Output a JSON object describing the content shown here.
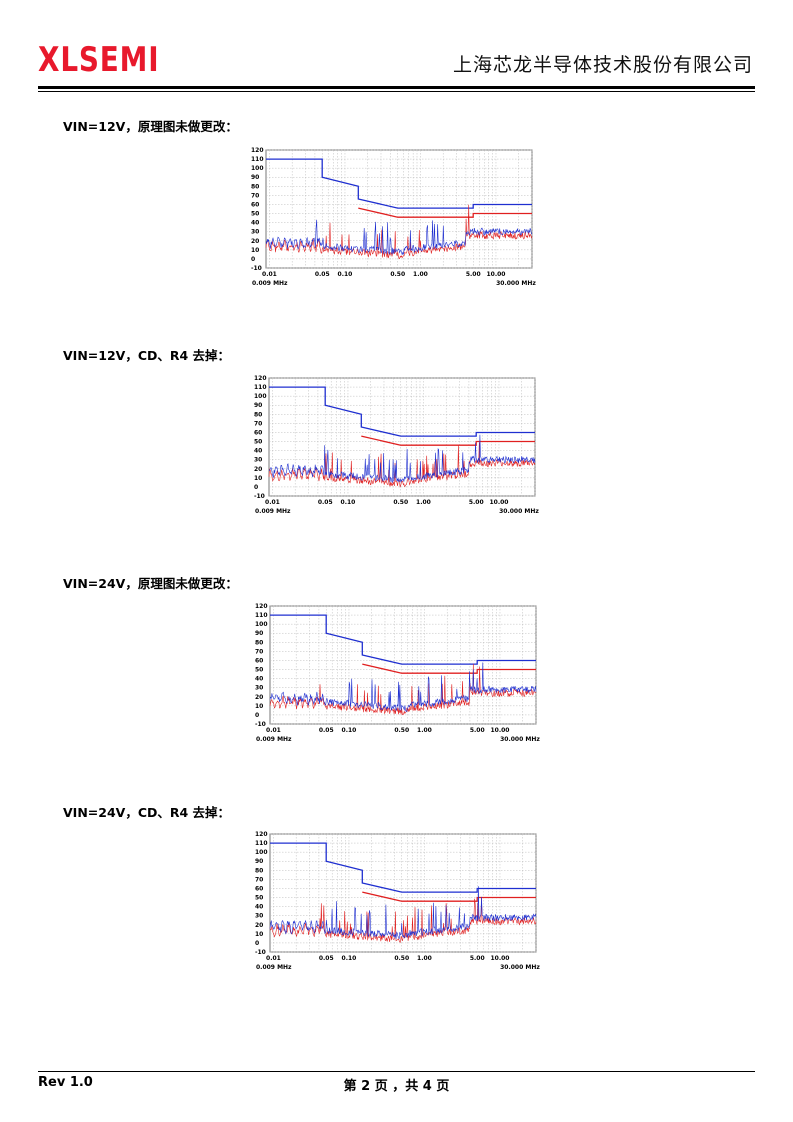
{
  "header": {
    "logo_text": "XLSEMI",
    "company": "上海芯龙半导体技术股份有限公司",
    "logo_color": "#e8192c"
  },
  "sections": [
    {
      "caption": "VIN=12V，原理图未做更改："
    },
    {
      "caption": "VIN=12V，CD、R4 去掉："
    },
    {
      "caption": "VIN=24V，原理图未做更改："
    },
    {
      "caption": "VIN=24V，CD、R4 去掉："
    }
  ],
  "footer": {
    "rev": "Rev 1.0",
    "page": "第 2 页 ，共 4 页"
  },
  "chart_data": [
    {
      "type": "line",
      "x_scale": "log",
      "xlim": [
        0.009,
        30.0
      ],
      "ylim": [
        -10,
        120
      ],
      "y_ticks": [
        120,
        110,
        100,
        90,
        80,
        70,
        60,
        50,
        40,
        30,
        20,
        10,
        0,
        -10
      ],
      "x_tick_labels": [
        "0.01",
        "0.05",
        "0.10",
        "0.50",
        "1.00",
        "5.00",
        "10.00"
      ],
      "x_start_label": "0.009 MHz",
      "x_end_label": "30.000 MHz",
      "grid": true,
      "colors": {
        "quasi_peak": "#1f2fd0",
        "average": "#e02020"
      },
      "limit_upper": {
        "x": [
          0.009,
          0.05,
          0.05,
          0.15,
          0.15,
          0.5,
          5.0,
          5.0,
          30.0
        ],
        "y": [
          110,
          110,
          90,
          80,
          66,
          56,
          56,
          60,
          60
        ]
      },
      "limit_lower": {
        "x": [
          0.15,
          0.5,
          5.0,
          5.0,
          30.0
        ],
        "y": [
          56,
          46,
          46,
          50,
          50
        ]
      },
      "variant": "12V-original"
    },
    {
      "type": "line",
      "x_scale": "log",
      "xlim": [
        0.009,
        30.0
      ],
      "ylim": [
        -10,
        120
      ],
      "y_ticks": [
        120,
        110,
        100,
        90,
        80,
        70,
        60,
        50,
        40,
        30,
        20,
        10,
        0,
        -10
      ],
      "x_tick_labels": [
        "0.01",
        "0.05",
        "0.10",
        "0.50",
        "1.00",
        "5.00",
        "10.00"
      ],
      "x_start_label": "0.009 MHz",
      "x_end_label": "30.000 MHz",
      "grid": true,
      "colors": {
        "quasi_peak": "#1f2fd0",
        "average": "#e02020"
      },
      "limit_upper": {
        "x": [
          0.009,
          0.05,
          0.05,
          0.15,
          0.15,
          0.5,
          5.0,
          5.0,
          30.0
        ],
        "y": [
          110,
          110,
          90,
          80,
          66,
          56,
          56,
          60,
          60
        ]
      },
      "limit_lower": {
        "x": [
          0.15,
          0.5,
          5.0,
          5.0,
          30.0
        ],
        "y": [
          56,
          46,
          46,
          50,
          50
        ]
      },
      "variant": "12V-removed"
    },
    {
      "type": "line",
      "x_scale": "log",
      "xlim": [
        0.009,
        30.0
      ],
      "ylim": [
        -10,
        120
      ],
      "y_ticks": [
        120,
        110,
        100,
        90,
        80,
        70,
        60,
        50,
        40,
        30,
        20,
        10,
        0,
        -10
      ],
      "x_tick_labels": [
        "0.01",
        "0.05",
        "0.10",
        "0.50",
        "1.00",
        "5.00",
        "10.00"
      ],
      "x_start_label": "0.009 MHz",
      "x_end_label": "30.000 MHz",
      "grid": true,
      "colors": {
        "quasi_peak": "#1f2fd0",
        "average": "#e02020"
      },
      "limit_upper": {
        "x": [
          0.009,
          0.05,
          0.05,
          0.15,
          0.15,
          0.5,
          5.0,
          5.0,
          30.0
        ],
        "y": [
          110,
          110,
          90,
          80,
          66,
          56,
          56,
          60,
          60
        ]
      },
      "limit_lower": {
        "x": [
          0.15,
          0.5,
          5.0,
          5.0,
          30.0
        ],
        "y": [
          56,
          46,
          46,
          50,
          50
        ]
      },
      "variant": "24V-original"
    },
    {
      "type": "line",
      "x_scale": "log",
      "xlim": [
        0.009,
        30.0
      ],
      "ylim": [
        -10,
        120
      ],
      "y_ticks": [
        120,
        110,
        100,
        90,
        80,
        70,
        60,
        50,
        40,
        30,
        20,
        10,
        0,
        -10
      ],
      "x_tick_labels": [
        "0.01",
        "0.05",
        "0.10",
        "0.50",
        "1.00",
        "5.00",
        "10.00"
      ],
      "x_start_label": "0.009 MHz",
      "x_end_label": "30.000 MHz",
      "grid": true,
      "colors": {
        "quasi_peak": "#1f2fd0",
        "average": "#e02020"
      },
      "limit_upper": {
        "x": [
          0.009,
          0.05,
          0.05,
          0.15,
          0.15,
          0.5,
          5.0,
          5.0,
          30.0
        ],
        "y": [
          110,
          110,
          90,
          80,
          66,
          56,
          56,
          60,
          60
        ]
      },
      "limit_lower": {
        "x": [
          0.15,
          0.5,
          5.0,
          5.0,
          30.0
        ],
        "y": [
          56,
          46,
          46,
          50,
          50
        ]
      },
      "variant": "24V-removed"
    }
  ]
}
